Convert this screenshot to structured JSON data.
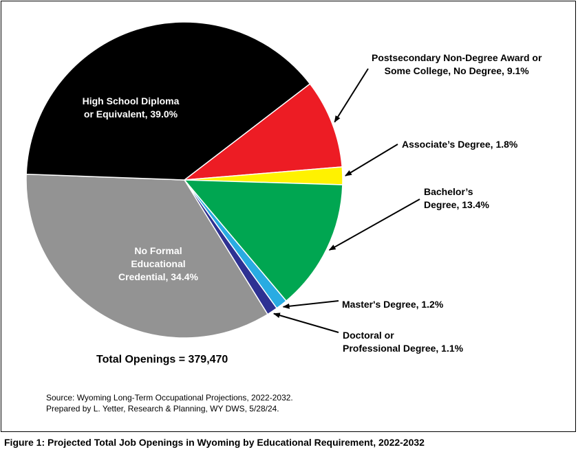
{
  "chart_data": {
    "type": "pie",
    "title": "Figure 1: Projected Total Job Openings in Wyoming by Educational Requirement, 2022-2032",
    "slices": [
      {
        "label": "Postsecondary Non-Degree Award or\nSome College, No Degree, 9.1%",
        "value": 9.1,
        "color": "#ed1c24"
      },
      {
        "label": "Associate’s Degree, 1.8%",
        "value": 1.8,
        "color": "#fff200"
      },
      {
        "label": "Bachelor’s\nDegree, 13.4%",
        "value": 13.4,
        "color": "#00a651"
      },
      {
        "label": "Master's Degree, 1.2%",
        "value": 1.2,
        "color": "#29abe2"
      },
      {
        "label": "Doctoral or\nProfessional Degree, 1.1%",
        "value": 1.1,
        "color": "#2e3192"
      },
      {
        "label": "No Formal\nEducational\nCredential, 34.4%",
        "value": 34.4,
        "color": "#939393"
      },
      {
        "label": "High School Diploma\nor Equivalent, 39.0%",
        "value": 39.0,
        "color": "#000000"
      }
    ],
    "legend": "callouts"
  },
  "total_openings": "Total Openings = 379,470",
  "source_lines": [
    "Source: Wyoming Long-Term Occupational Projections, 2022-2032.",
    "Prepared by L. Yetter, Research & Planning, WY DWS, 5/28/24."
  ],
  "caption": "Figure 1: Projected Total Job Openings in Wyoming by Educational Requirement, 2022-2032"
}
